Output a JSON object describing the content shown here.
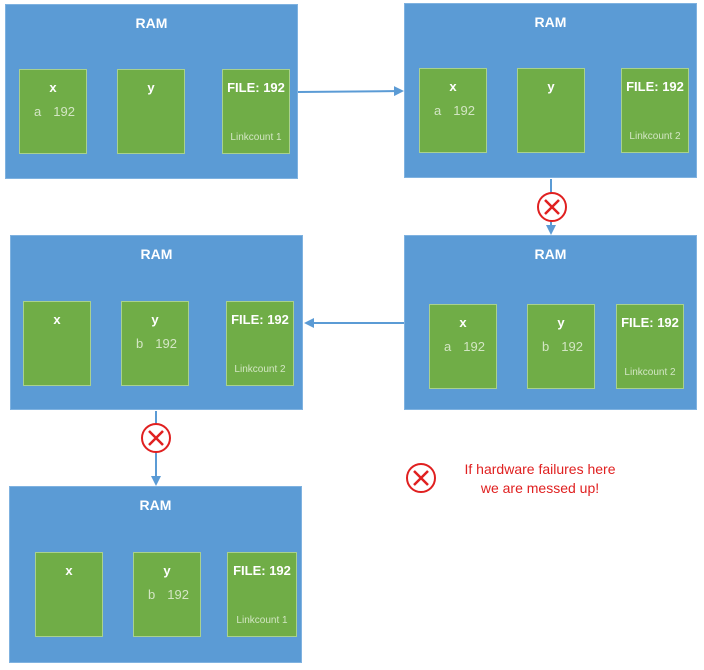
{
  "ram_label": "RAM",
  "panels": [
    {
      "id": "panel1",
      "title": "RAM",
      "cells": [
        {
          "title": "x",
          "var": "a",
          "val": "192"
        },
        {
          "title": "y"
        },
        {
          "title": "FILE: 192",
          "note": "Linkcount 1"
        }
      ]
    },
    {
      "id": "panel2",
      "title": "RAM",
      "cells": [
        {
          "title": "x",
          "var": "a",
          "val": "192"
        },
        {
          "title": "y"
        },
        {
          "title": "FILE: 192",
          "note": "Linkcount 2"
        }
      ]
    },
    {
      "id": "panel3",
      "title": "RAM",
      "cells": [
        {
          "title": "x",
          "var": "a",
          "val": "192"
        },
        {
          "title": "y",
          "var": "b",
          "val": "192"
        },
        {
          "title": "FILE: 192",
          "note": "Linkcount 2"
        }
      ]
    },
    {
      "id": "panel4",
      "title": "RAM",
      "cells": [
        {
          "title": "x"
        },
        {
          "title": "y",
          "var": "b",
          "val": "192"
        },
        {
          "title": "FILE: 192",
          "note": "Linkcount 2"
        }
      ]
    },
    {
      "id": "panel5",
      "title": "RAM",
      "cells": [
        {
          "title": "x"
        },
        {
          "title": "y",
          "var": "b",
          "val": "192"
        },
        {
          "title": "FILE: 192",
          "note": "Linkcount 1"
        }
      ]
    }
  ],
  "legend": {
    "line1": "If hardware failures here",
    "line2": "we are messed up!",
    "failure_icon": "x-circle-icon",
    "failure_color": "#e02020"
  },
  "colors": {
    "ram_fill": "#5b9bd5",
    "cell_fill": "#70ad47",
    "arrow": "#5b9bd5"
  }
}
